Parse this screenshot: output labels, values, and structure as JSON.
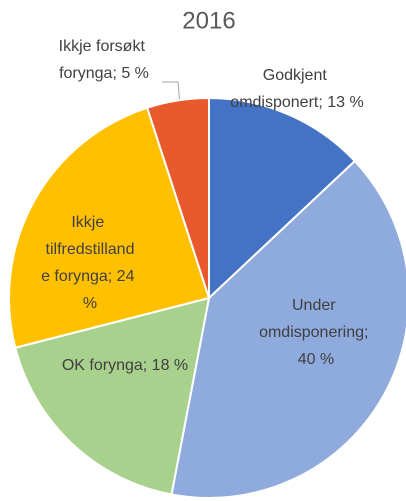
{
  "chart_data": {
    "type": "pie",
    "title": "2016",
    "categories": [
      "Godkjent omdisponert",
      "Under omdisponering",
      "OK forynga",
      "Ikkje tilfredstillande forynga",
      "Ikkje forsøkt forynga"
    ],
    "values": [
      13,
      40,
      18,
      24,
      5
    ],
    "value_labels": [
      "Godkjent omdisponert; 13 %",
      "Under omdisponering; 40 %",
      "OK forynga; 18 %",
      "Ikkje tilfredstillande forynga; 24 %",
      "Ikkje forsøkt forynga; 5 %"
    ],
    "colors": [
      "#4472c4",
      "#8faadc",
      "#a9d18e",
      "#ffc000",
      "#e8592e"
    ]
  }
}
